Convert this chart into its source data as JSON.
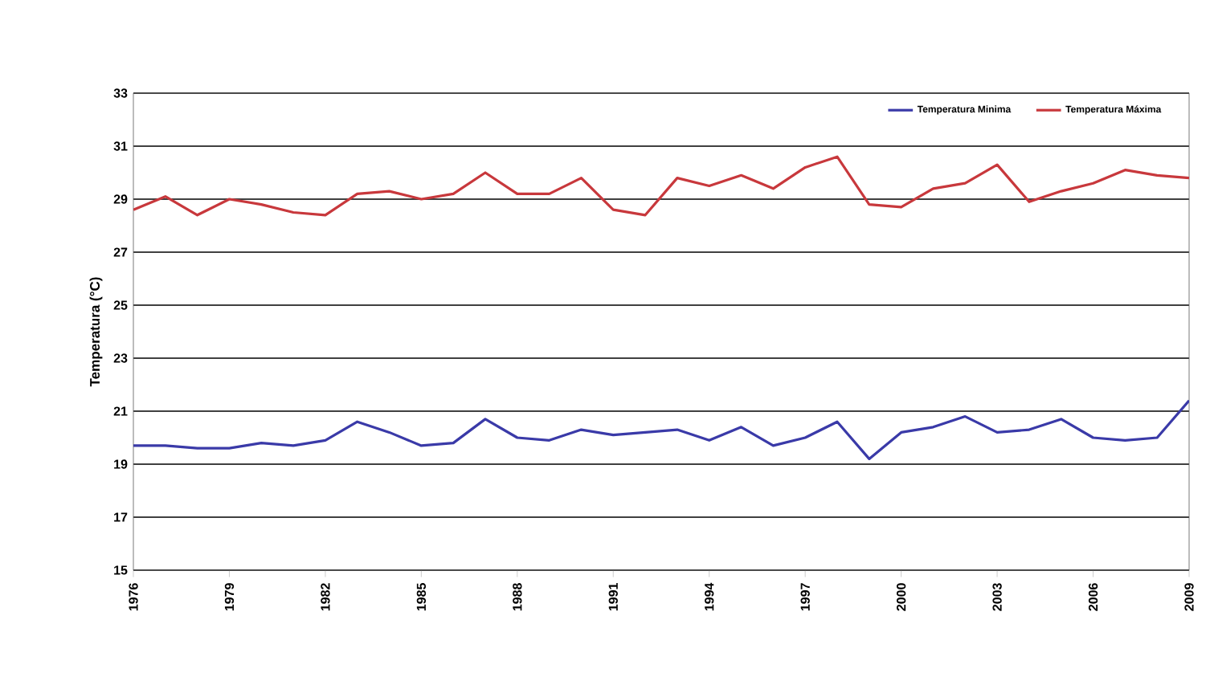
{
  "chart_data": {
    "type": "line",
    "ylabel": "Temperatura (°C)",
    "x": [
      1976,
      1977,
      1978,
      1979,
      1980,
      1981,
      1982,
      1983,
      1984,
      1985,
      1986,
      1987,
      1988,
      1989,
      1990,
      1991,
      1992,
      1993,
      1994,
      1995,
      1996,
      1997,
      1998,
      1999,
      2000,
      2001,
      2002,
      2003,
      2004,
      2005,
      2006,
      2007,
      2008,
      2009
    ],
    "series": [
      {
        "name": "Temperatura Minima",
        "color": "#3a3aa8",
        "values": [
          19.7,
          19.7,
          19.6,
          19.6,
          19.8,
          19.7,
          19.9,
          20.6,
          20.2,
          19.7,
          19.8,
          20.7,
          20.0,
          19.9,
          20.3,
          20.1,
          20.2,
          20.3,
          19.9,
          20.4,
          19.7,
          20.0,
          20.6,
          19.2,
          20.2,
          20.4,
          20.8,
          20.2,
          20.3,
          20.7,
          20.0,
          19.9,
          20.0,
          21.4
        ]
      },
      {
        "name": "Temperatura Máxima",
        "color": "#c8383c",
        "values": [
          28.6,
          29.1,
          28.4,
          29.0,
          28.8,
          28.5,
          28.4,
          29.2,
          29.3,
          29.0,
          29.2,
          30.0,
          29.2,
          29.2,
          29.8,
          28.6,
          28.4,
          29.8,
          29.5,
          29.9,
          29.4,
          30.2,
          30.6,
          28.8,
          28.7,
          29.4,
          29.6,
          30.3,
          28.9,
          29.3,
          29.6,
          30.1,
          29.9,
          29.8
        ]
      }
    ],
    "xlim": [
      1976,
      2009
    ],
    "xticks": [
      1976,
      1979,
      1982,
      1985,
      1988,
      1991,
      1994,
      1997,
      2000,
      2003,
      2006,
      2009
    ],
    "ylim": [
      15,
      33
    ],
    "yticks": [
      15,
      17,
      19,
      21,
      23,
      25,
      27,
      29,
      31,
      33
    ],
    "grid": "y",
    "legend": "top right",
    "marker": "none",
    "line_style": "solid"
  }
}
